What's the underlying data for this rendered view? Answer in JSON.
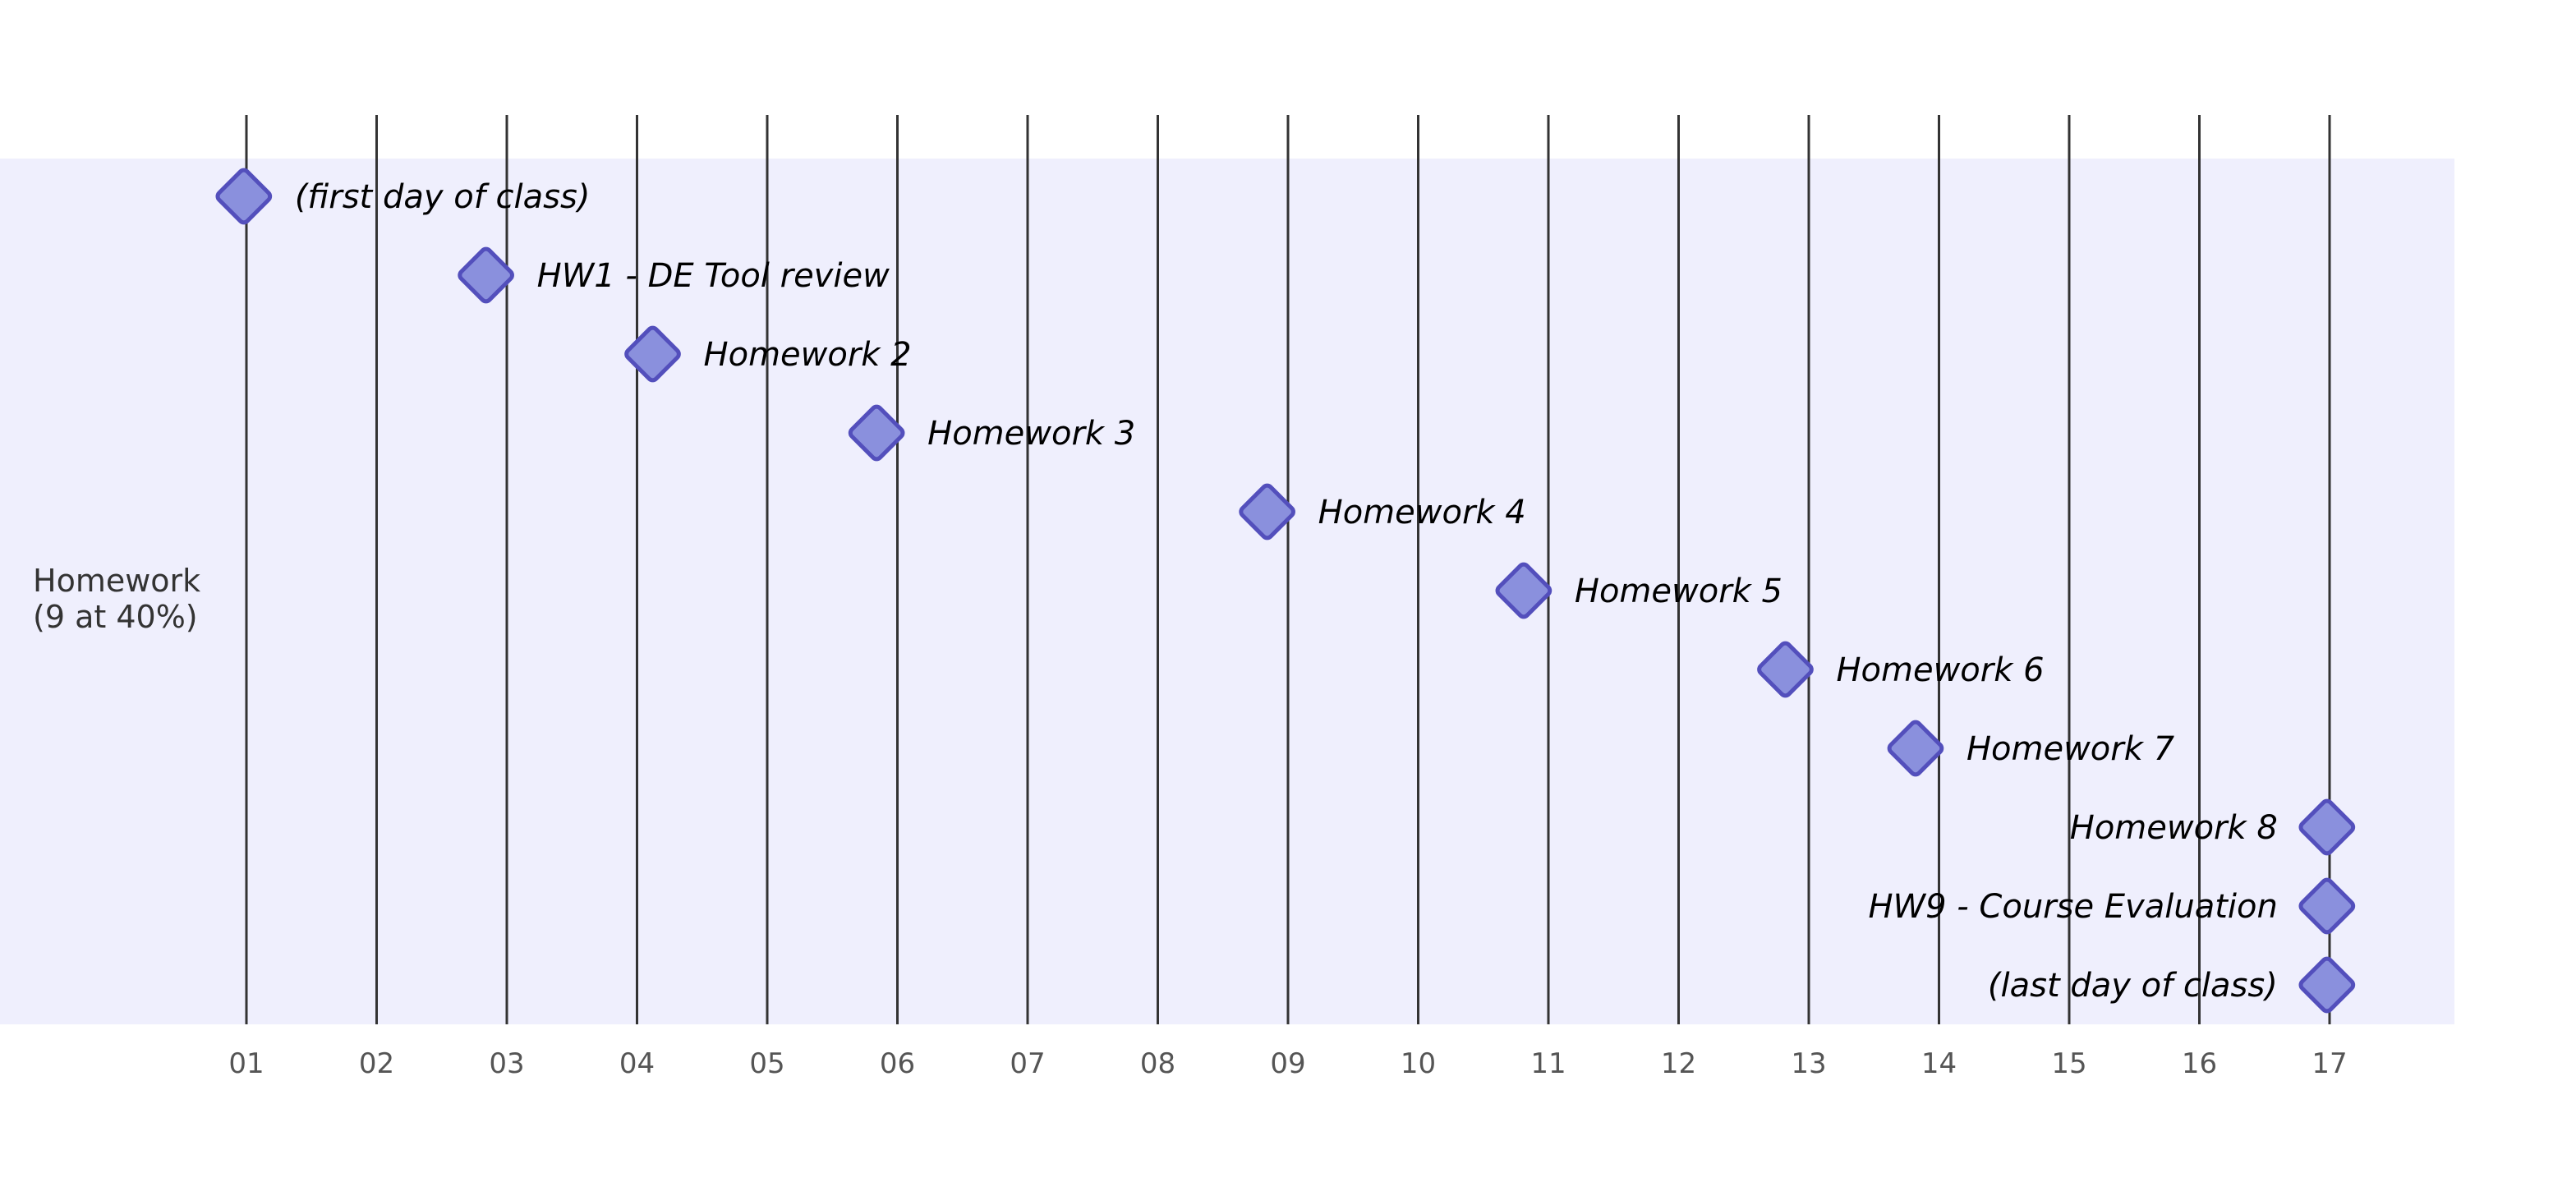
{
  "chart_data": {
    "type": "gantt",
    "title": "",
    "section": {
      "title_lines": [
        "Homework",
        "(9 at 40%)"
      ]
    },
    "x_axis": {
      "ticks": [
        "01",
        "02",
        "03",
        "04",
        "05",
        "06",
        "07",
        "08",
        "09",
        "10",
        "11",
        "12",
        "13",
        "14",
        "15",
        "16",
        "17"
      ],
      "range": [
        0.25,
        17.95
      ]
    },
    "milestones": [
      {
        "label": "(first day of class)",
        "x": 0.98
      },
      {
        "label": "HW1 - DE Tool review",
        "x": 2.84
      },
      {
        "label": "Homework 2",
        "x": 4.12
      },
      {
        "label": "Homework 3",
        "x": 5.84
      },
      {
        "label": "Homework 4",
        "x": 8.84
      },
      {
        "label": "Homework 5",
        "x": 10.81
      },
      {
        "label": "Homework 6",
        "x": 12.82
      },
      {
        "label": "Homework 7",
        "x": 13.82
      },
      {
        "label": "Homework 8",
        "x": 16.98
      },
      {
        "label": "HW9 - Course Evaluation",
        "x": 16.98
      },
      {
        "label": "(last day of class)",
        "x": 16.98
      }
    ],
    "colors": {
      "section_background": "#efeffd",
      "milestone_fill": "#8a90dd",
      "milestone_stroke": "#534fbc",
      "grid_line": "#333333",
      "task_text": "#000000",
      "tick_text": "#555555"
    },
    "grid": true
  }
}
